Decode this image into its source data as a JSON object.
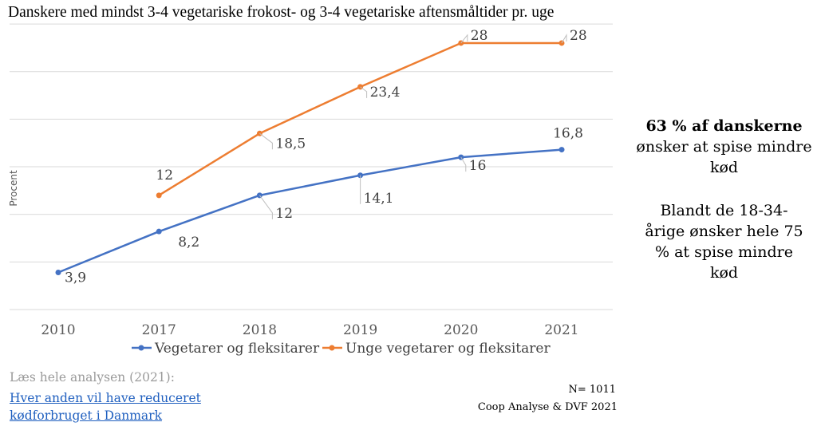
{
  "chart_data": {
    "type": "line",
    "title": "Danskere med mindst 3-4 vegetariske frokost- og 3-4 vegetariske aftensmåltider pr. uge",
    "ylabel": "Procent",
    "xlabel": "",
    "categories": [
      "2010",
      "2017",
      "2018",
      "2019",
      "2020",
      "2021"
    ],
    "ylim": [
      0,
      30
    ],
    "grid": true,
    "legend": "bottom",
    "series": [
      {
        "name": "Vegetarer og fleksitarer",
        "color": "#4472c4",
        "values": [
          3.9,
          8.2,
          12,
          14.1,
          16,
          16.8
        ],
        "labels": [
          "3,9",
          "8,2",
          "12",
          "14,1",
          "16",
          "16,8"
        ]
      },
      {
        "name": "Unge vegetarer og fleksitarer",
        "color": "#ed7d31",
        "values": [
          null,
          12,
          18.5,
          23.4,
          28,
          28
        ],
        "labels": [
          "",
          "12",
          "18,5",
          "23,4",
          "28",
          "28"
        ]
      }
    ]
  },
  "side": {
    "p1_bold": "63 % af danskerne",
    "p1_rest": "ønsker at spise mindre kød",
    "p2": "Blandt de 18-34-årige ønsker hele 75 % at spise mindre kød"
  },
  "footer": {
    "intro": "Læs hele analysen (2021):",
    "link": "Hver anden vil have reduceret kødforbruget i Danmark",
    "n": "N= 1011",
    "source": "Coop Analyse & DVF 2021"
  }
}
